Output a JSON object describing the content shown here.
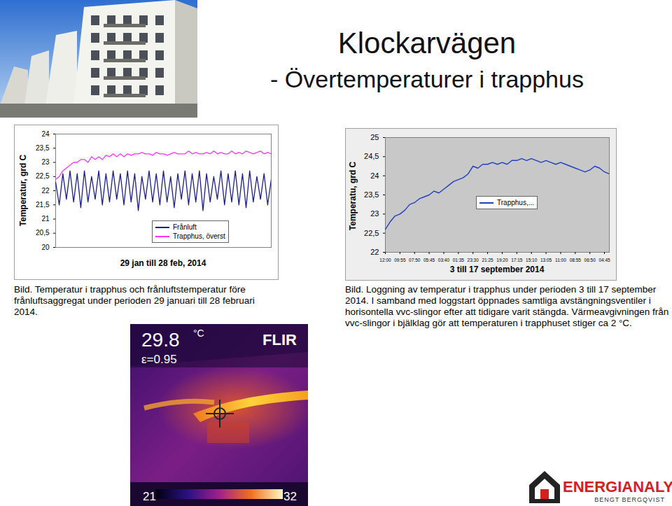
{
  "header": {
    "title": "Klockarvägen",
    "subtitle": "- Övertemperaturer i trapphus"
  },
  "chart_data": [
    {
      "type": "line",
      "x_label": "29 jan till 28 feb, 2014",
      "y_label": "Temperatur, grd C",
      "x": [
        0,
        0.5,
        1,
        1.5,
        2,
        2.5,
        3,
        3.5,
        4,
        4.5,
        5,
        5.5,
        6,
        6.5,
        7,
        7.5,
        8,
        8.5,
        9,
        9.5,
        10,
        10.5,
        11,
        11.5,
        12,
        12.5,
        13,
        13.5,
        14,
        14.5,
        15,
        15.5,
        16,
        16.5,
        17,
        17.5,
        18,
        18.5,
        19,
        19.5,
        20,
        20.5,
        21,
        21.5,
        22,
        22.5,
        23,
        23.5,
        24,
        24.5,
        25,
        25.5,
        26,
        26.5,
        27,
        27.5,
        28,
        28.5,
        29,
        29.5,
        30
      ],
      "xlim": [
        0,
        30
      ],
      "ylim": [
        20,
        24
      ],
      "yticks": [
        20,
        {
          "value": 20.5,
          "label": "20,5"
        },
        21,
        {
          "value": 21.5,
          "label": "21,5"
        },
        22,
        {
          "value": 22.5,
          "label": "22,5"
        },
        23,
        {
          "value": 23.5,
          "label": "23,5"
        },
        24
      ],
      "tick_labels": "y",
      "grid": false,
      "legend": "lower center",
      "series": [
        {
          "name": "Frånluft",
          "color": "#1c1f8a",
          "values": [
            22.3,
            21.5,
            22.6,
            21.7,
            22.7,
            21.6,
            22.6,
            21.4,
            22.7,
            21.6,
            22.5,
            21.7,
            22.7,
            21.5,
            22.6,
            21.6,
            22.7,
            21.7,
            22.6,
            21.5,
            22.7,
            21.6,
            22.6,
            21.3,
            22.5,
            21.7,
            22.7,
            21.6,
            22.6,
            21.5,
            22.7,
            21.6,
            22.5,
            21.4,
            22.6,
            21.7,
            22.7,
            21.5,
            22.6,
            21.6,
            22.7,
            21.3,
            22.6,
            21.6,
            22.5,
            21.7,
            22.7,
            21.5,
            22.6,
            21.6,
            22.7,
            21.5,
            22.6,
            21.4,
            22.7,
            21.6,
            22.5,
            21.7,
            22.6,
            21.5,
            22.4
          ]
        },
        {
          "name": "Trapphus, överst",
          "color": "#ff33ff",
          "values": [
            22.4,
            22.5,
            22.7,
            22.8,
            22.9,
            23.0,
            23.0,
            23.1,
            23.1,
            23.0,
            23.2,
            23.1,
            23.2,
            23.1,
            23.25,
            23.2,
            23.3,
            23.2,
            23.3,
            23.2,
            23.3,
            23.25,
            23.3,
            23.3,
            23.35,
            23.3,
            23.3,
            23.25,
            23.35,
            23.3,
            23.3,
            23.25,
            23.3,
            23.35,
            23.3,
            23.3,
            23.3,
            23.4,
            23.3,
            23.35,
            23.3,
            23.3,
            23.35,
            23.3,
            23.4,
            23.3,
            23.35,
            23.3,
            23.3,
            23.4,
            23.3,
            23.35,
            23.3,
            23.4,
            23.35,
            23.3,
            23.35,
            23.4,
            23.3,
            23.35,
            23.3
          ]
        }
      ]
    },
    {
      "type": "line",
      "x_label": "3 till 17 september 2014",
      "y_label": "Temperatu, grd C",
      "categories": [
        "12:00",
        null,
        null,
        "09:55",
        null,
        null,
        "07:50",
        null,
        null,
        "05:45",
        null,
        null,
        "03:40",
        null,
        null,
        "01:35",
        null,
        null,
        "23:30",
        null,
        null,
        "21:25",
        null,
        null,
        "19:20",
        null,
        null,
        "17:15",
        null,
        null,
        "15:10",
        null,
        null,
        "13:05",
        null,
        null,
        "11:00",
        null,
        null,
        "08:55",
        null,
        null,
        "06:50",
        null,
        null,
        "04:45",
        null
      ],
      "ylim": [
        22,
        25
      ],
      "yticks": [
        22,
        {
          "value": 22.5,
          "label": "22,5"
        },
        23,
        {
          "value": 23.5,
          "label": "23,5"
        },
        24,
        {
          "value": 24.5,
          "label": "24,5"
        },
        25
      ],
      "grid": false,
      "legend": "center right",
      "series": [
        {
          "name": "Trapphus,...",
          "color": "#2040c0",
          "values": [
            22.6,
            22.8,
            22.95,
            23.0,
            23.1,
            23.25,
            23.3,
            23.4,
            23.45,
            23.5,
            23.6,
            23.55,
            23.65,
            23.75,
            23.85,
            23.9,
            23.95,
            24.05,
            24.25,
            24.2,
            24.3,
            24.3,
            24.35,
            24.3,
            24.35,
            24.3,
            24.4,
            24.4,
            24.45,
            24.4,
            24.45,
            24.4,
            24.35,
            24.4,
            24.35,
            24.3,
            24.35,
            24.3,
            24.25,
            24.2,
            24.15,
            24.1,
            24.15,
            24.25,
            24.2,
            24.1,
            24.05
          ]
        }
      ]
    }
  ],
  "captions": [
    "Bild. Temperatur i trapphus och frånluftstemperatur före frånluftsaggregat under perioden 29 januari till 28 februari 2014.",
    "Bild. Loggning av temperatur i trapphus under perioden 3 till 17 september 2014. I samband med loggstart öppnades samtliga avstängningsventiler i horisontella vvc-slingor efter att tidigare varit stängda. Värmeavgivningen från vvc-slingor i bjälklag gör att temperaturen i trapphuset stiger ca 2 °C."
  ],
  "thermal_image": {
    "temperature": "29.8",
    "unit": "°C",
    "emissivity": "ε=0.95",
    "brand": "FLIR",
    "scale_min": 21,
    "scale_max": 32
  },
  "logo": {
    "name": "ENERGIANALYS",
    "tagline": "BENGT BERGQVIST"
  }
}
